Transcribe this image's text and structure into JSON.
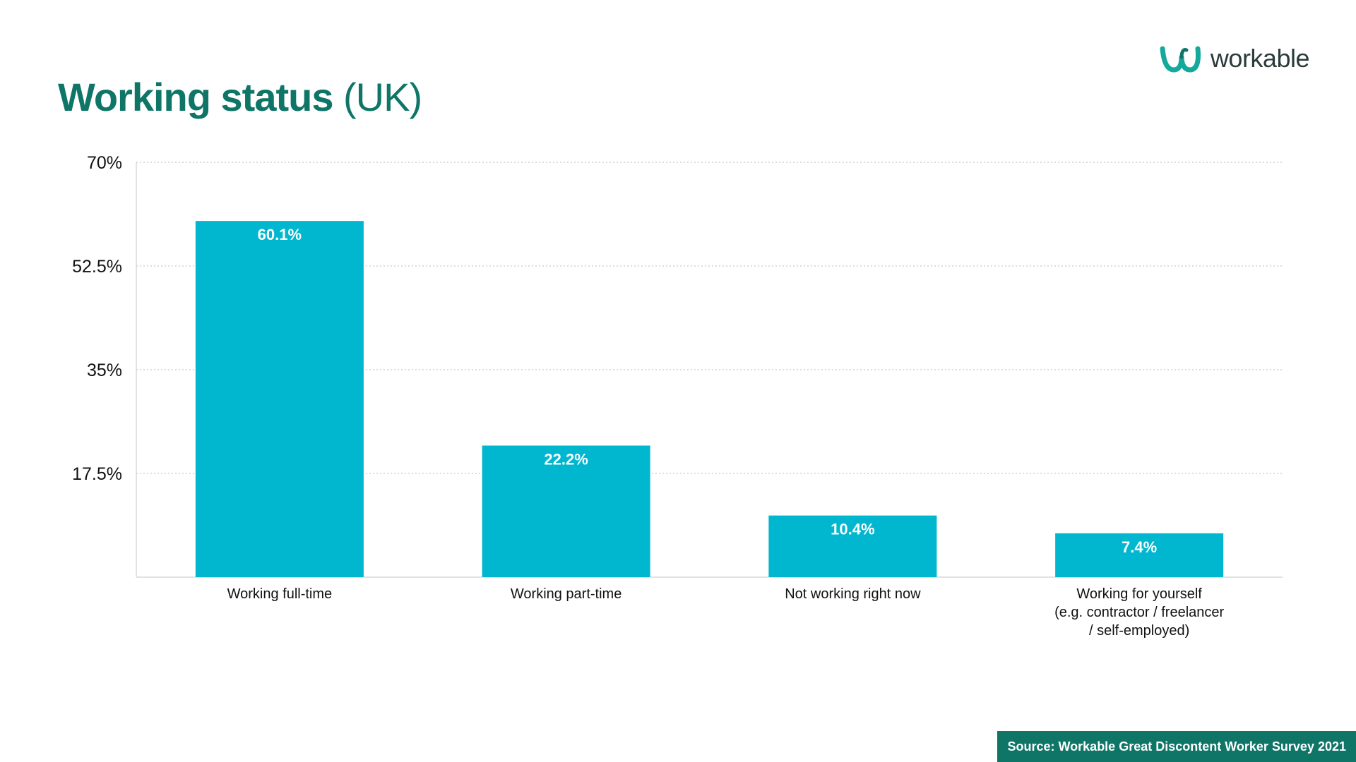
{
  "title": {
    "bold": "Working status",
    "light": "(UK)"
  },
  "brand": {
    "wordmark": "workable",
    "icon": "workable-logo-icon"
  },
  "source": "Source: Workable Great Discontent Worker Survey 2021",
  "colors": {
    "title": "#0e7567",
    "bar": "#00b7cf",
    "source_bg": "#0e7567",
    "grid": "#c8c8c8"
  },
  "chart_data": {
    "type": "bar",
    "categories": [
      [
        "Working full-time"
      ],
      [
        "Working part-time"
      ],
      [
        "Not working right now"
      ],
      [
        "Working for yourself",
        "(e.g. contractor / freelancer",
        "/ self-employed)"
      ]
    ],
    "values": [
      60.1,
      22.2,
      10.4,
      7.4
    ],
    "value_labels": [
      "60.1%",
      "22.2%",
      "10.4%",
      "7.4%"
    ],
    "yticks": [
      17.5,
      35,
      52.5,
      70
    ],
    "ytick_labels": [
      "17.5%",
      "35%",
      "52.5%",
      "70%"
    ],
    "ylim": [
      0,
      70
    ],
    "grid": true,
    "legend": "none",
    "xlabel": "",
    "ylabel": ""
  }
}
